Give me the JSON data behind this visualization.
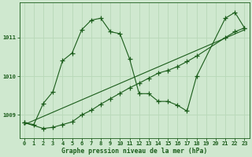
{
  "background_color": "#cfe8cf",
  "grid_color": "#b8d8b8",
  "line_color": "#1a5c1a",
  "title": "Graphe pression niveau de la mer (hPa)",
  "xlim": [
    -0.5,
    23.5
  ],
  "ylim": [
    1008.4,
    1011.9
  ],
  "yticks": [
    1009,
    1010,
    1011
  ],
  "xticks": [
    0,
    1,
    2,
    3,
    4,
    5,
    6,
    7,
    8,
    9,
    10,
    11,
    12,
    13,
    14,
    15,
    16,
    17,
    18,
    19,
    20,
    21,
    22,
    23
  ],
  "line1_x": [
    0,
    1,
    2,
    3,
    4,
    5,
    6,
    7,
    8,
    9,
    10,
    11,
    12,
    13,
    14,
    15,
    16,
    17,
    18,
    21,
    22,
    23
  ],
  "line1_y": [
    1008.8,
    1008.75,
    1009.3,
    1009.6,
    1010.4,
    1010.6,
    1011.2,
    1011.45,
    1011.5,
    1011.15,
    1011.1,
    1010.45,
    1009.55,
    1009.55,
    1009.35,
    1009.35,
    1009.25,
    1009.1,
    1010.0,
    1011.5,
    1011.65,
    1011.25
  ],
  "line2_x": [
    0,
    2,
    3,
    4,
    5,
    6,
    7,
    8,
    9,
    10,
    11,
    12,
    13,
    14,
    15,
    16,
    17,
    18,
    21,
    22,
    23
  ],
  "line2_y": [
    1008.8,
    1008.65,
    1008.68,
    1008.75,
    1008.82,
    1009.0,
    1009.12,
    1009.28,
    1009.42,
    1009.56,
    1009.7,
    1009.82,
    1009.95,
    1010.08,
    1010.15,
    1010.25,
    1010.38,
    1010.52,
    1011.0,
    1011.15,
    1011.25
  ],
  "line3_x": [
    0,
    23
  ],
  "line3_y": [
    1008.75,
    1011.2
  ]
}
